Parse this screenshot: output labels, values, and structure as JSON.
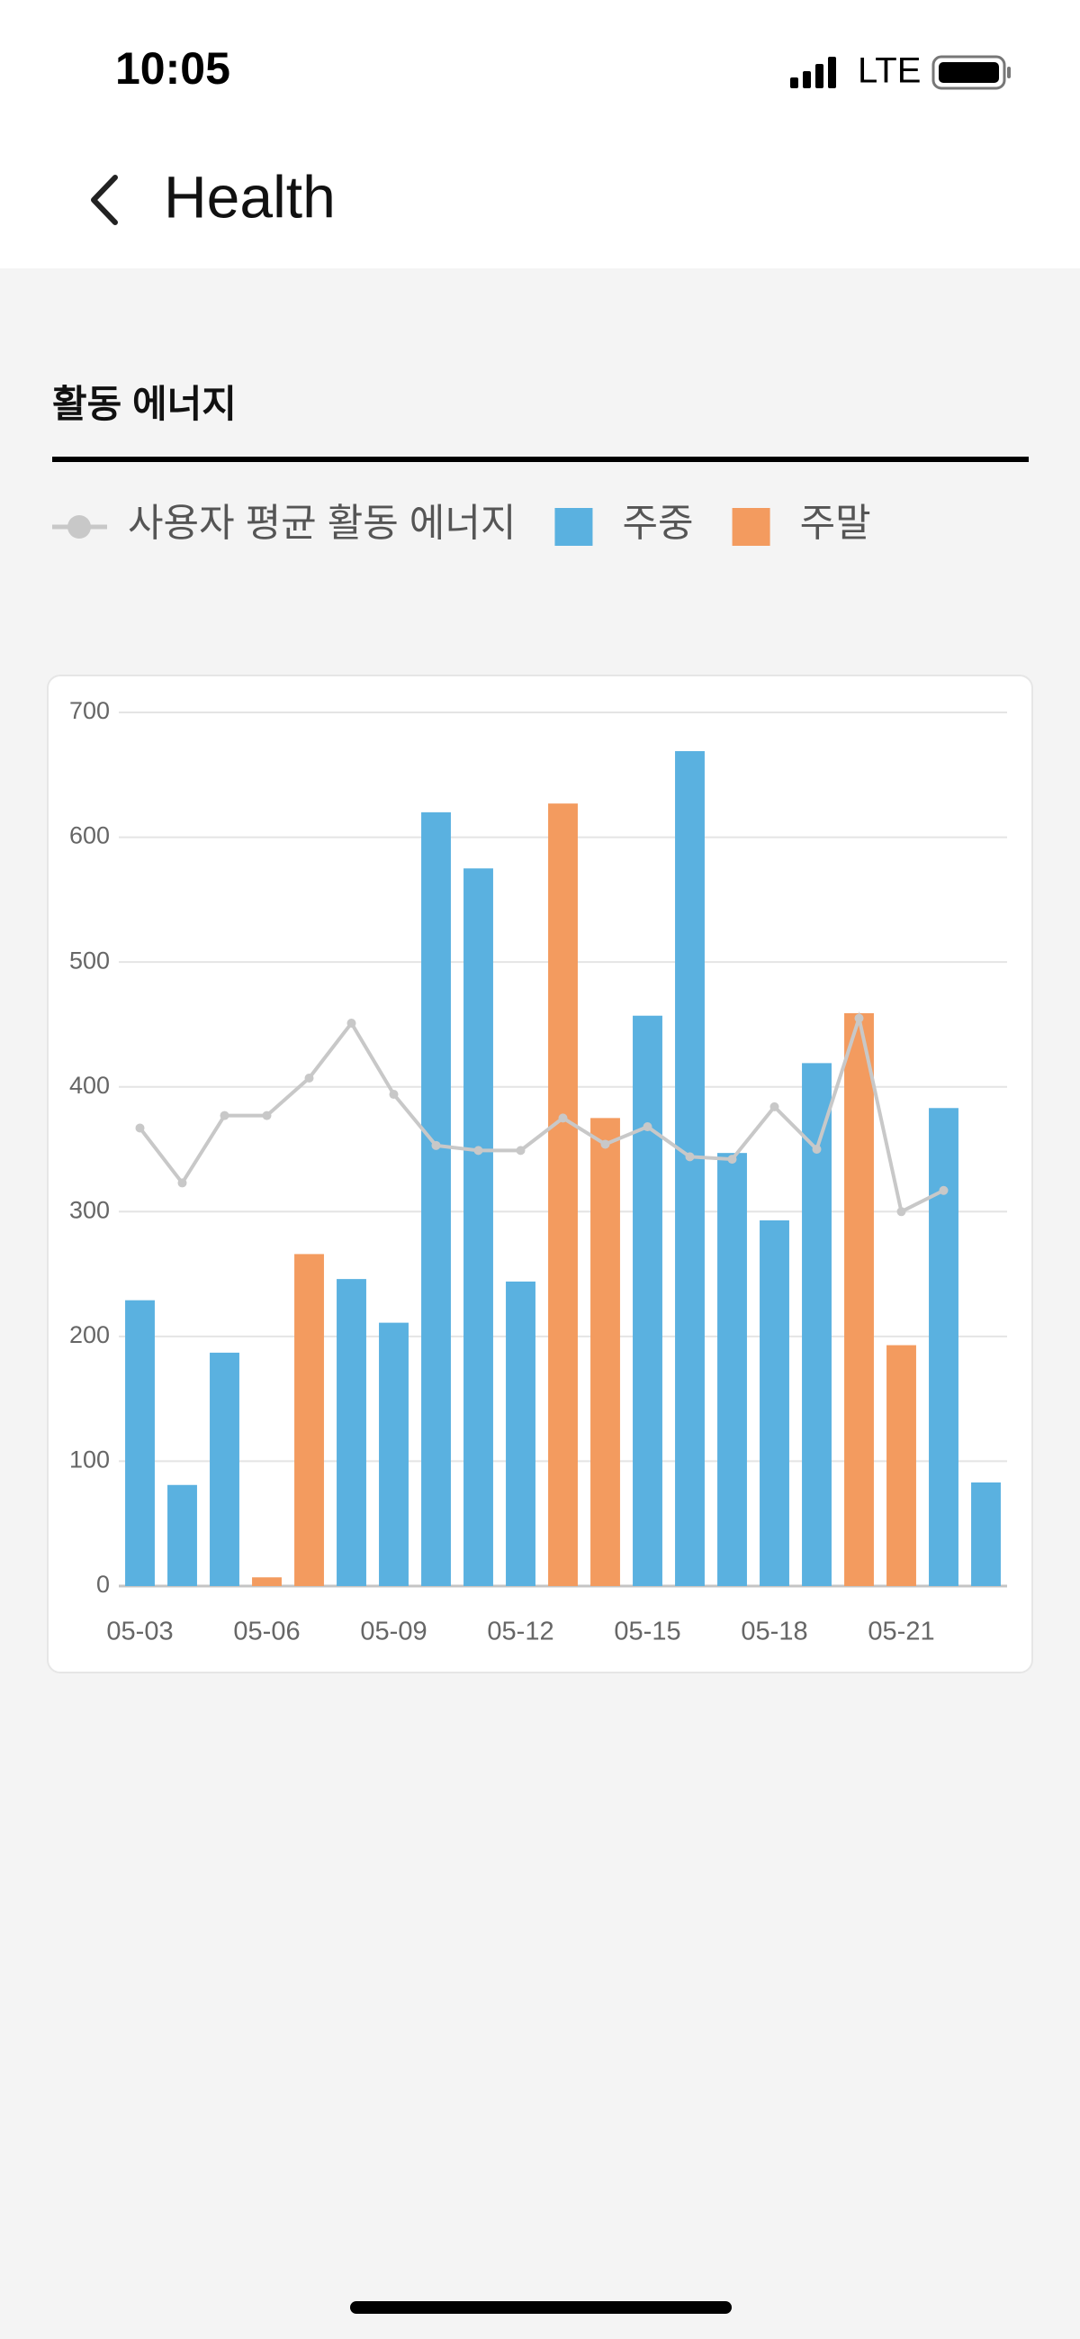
{
  "status_bar": {
    "time": "10:05",
    "network": "LTE"
  },
  "header": {
    "title": "Health"
  },
  "section": {
    "title": "활동 에너지"
  },
  "chart_data": {
    "type": "bar",
    "categories": [
      "05-03",
      null,
      null,
      "05-06",
      null,
      null,
      "05-09",
      null,
      null,
      "05-12",
      null,
      null,
      "05-15",
      null,
      null,
      "05-18",
      null,
      null,
      "05-21",
      null,
      null
    ],
    "series": [
      {
        "name": "사용자 평균 활동 에너지",
        "type": "line",
        "color": "#c8c8c8",
        "values": [
          367,
          323,
          377,
          377,
          407,
          451,
          394,
          353,
          349,
          349,
          375,
          354,
          368,
          344,
          342,
          384,
          350,
          455,
          300,
          317,
          null
        ]
      },
      {
        "name": "주중",
        "color": "#5ab1e0",
        "values": [
          229,
          81,
          187,
          null,
          null,
          246,
          211,
          620,
          575,
          244,
          null,
          null,
          457,
          669,
          347,
          293,
          419,
          null,
          null,
          383,
          83
        ]
      },
      {
        "name": "주말",
        "color": "#f39b5f",
        "values": [
          null,
          null,
          null,
          7,
          266,
          null,
          null,
          null,
          null,
          null,
          627,
          375,
          null,
          null,
          null,
          null,
          null,
          459,
          193,
          null,
          null
        ]
      }
    ],
    "ylim": [
      0,
      700
    ],
    "yticks": [
      0,
      100,
      200,
      300,
      400,
      500,
      600,
      700
    ],
    "grid": true
  }
}
